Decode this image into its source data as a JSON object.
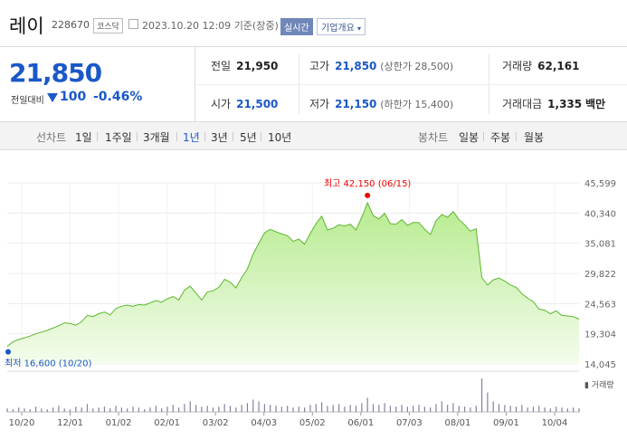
{
  "header": {
    "name": "레이",
    "code": "228670",
    "market": "코스닥",
    "datetime": "2023.10.20 12:09",
    "basis": "기준(장중)",
    "realtime_label": "실시간",
    "corp_info_label": "기업개요"
  },
  "quote": {
    "price": "21,850",
    "change_label": "전일대비",
    "change": "100",
    "percent": "-0.46%",
    "direction": "down"
  },
  "stats": {
    "prev_label": "전일",
    "prev": "21,950",
    "high_label": "고가",
    "high": "21,850",
    "upper_limit": "(상한가 28,500)",
    "volume_label": "거래량",
    "volume": "62,161",
    "open_label": "시가",
    "open": "21,500",
    "low_label": "저가",
    "low": "21,150",
    "lower_limit": "(하한가 15,400)",
    "value_label": "거래대금",
    "value": "1,335",
    "value_unit": "백만"
  },
  "chart_tabs": {
    "line_label": "선차트",
    "periods": [
      "1일",
      "1주일",
      "3개월",
      "1년",
      "3년",
      "5년",
      "10년"
    ],
    "selected": "1년",
    "candle_label": "봉차트",
    "candles": [
      "일봉",
      "주봉",
      "월봉"
    ]
  },
  "chart_data": {
    "type": "area",
    "y_ticks": [
      "45,599",
      "40,340",
      "35,081",
      "29,822",
      "24,563",
      "19,304",
      "14,045"
    ],
    "ylim": [
      14045,
      45599
    ],
    "x_ticks": [
      "10/20",
      "12/01",
      "01/02",
      "02/01",
      "03/02",
      "04/03",
      "05/02",
      "06/01",
      "07/03",
      "08/01",
      "09/01",
      "10/04"
    ],
    "max_annotation": "최고 42,150 (06/15)",
    "min_annotation": "최저 16,600 (10/20)",
    "volume_label": "거래량",
    "fill_color": "#b7eb8f",
    "line_color": "#5cb82e",
    "series": [
      {
        "values": [
          17100,
          17900,
          18300,
          18600,
          18900,
          19300,
          19600,
          19900,
          20300,
          20700,
          21200,
          21100,
          20800,
          21400,
          22500,
          22300,
          22800,
          23100,
          22600,
          23700,
          24100,
          24300,
          24100,
          24400,
          24300,
          24700,
          25100,
          24800,
          25400,
          25800,
          25200,
          26900,
          27600,
          26400,
          25200,
          26600,
          26800,
          27400,
          28800,
          28300,
          27300,
          29100,
          30600,
          33200,
          35100,
          36900,
          37500,
          37100,
          36700,
          36400,
          35400,
          35800,
          34900,
          36800,
          38500,
          39800,
          37400,
          37700,
          38300,
          38100,
          38400,
          37400,
          39600,
          42150,
          39900,
          39300,
          40300,
          38500,
          38400,
          39200,
          38200,
          38700,
          38700,
          37500,
          36600,
          39000,
          40100,
          39600,
          40600,
          39200,
          38300,
          37200,
          37600,
          29100,
          27800,
          28700,
          29000,
          28500,
          27800,
          27400,
          26300,
          25500,
          24900,
          23600,
          23400,
          22800,
          23300,
          22500,
          22400,
          22300,
          21850
        ]
      }
    ],
    "volume": [
      4,
      3,
      5,
      4,
      3,
      6,
      4,
      3,
      5,
      7,
      4,
      3,
      6,
      5,
      9,
      4,
      5,
      6,
      4,
      7,
      5,
      4,
      6,
      5,
      3,
      5,
      7,
      4,
      6,
      8,
      5,
      9,
      12,
      8,
      6,
      7,
      5,
      6,
      9,
      7,
      5,
      8,
      10,
      14,
      12,
      9,
      8,
      7,
      6,
      7,
      5,
      6,
      5,
      8,
      9,
      11,
      7,
      8,
      9,
      6,
      8,
      7,
      10,
      16,
      9,
      8,
      10,
      7,
      6,
      8,
      6,
      7,
      8,
      6,
      5,
      9,
      12,
      8,
      10,
      7,
      6,
      5,
      7,
      38,
      22,
      12,
      9,
      8,
      7,
      6,
      8,
      5,
      6,
      7,
      5,
      4,
      6,
      5,
      4,
      5,
      4
    ]
  }
}
